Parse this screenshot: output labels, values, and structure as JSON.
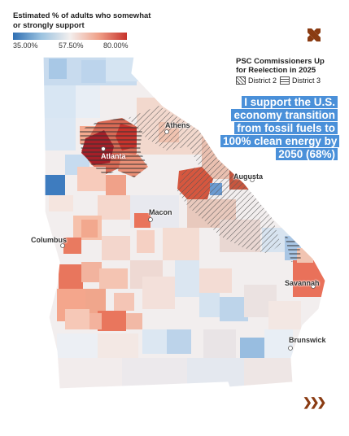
{
  "legend": {
    "title": "Estimated % of adults who somewhat or strongly support",
    "min_label": "35.00%",
    "mid_label": "57.50%",
    "max_label": "80.00%",
    "colors": [
      "#2f6fb3",
      "#9cc3e0",
      "#f3efee",
      "#f0a189",
      "#c7332c"
    ]
  },
  "psc": {
    "title": "PSC Commissioners Up for Reelection in 2025",
    "district2": "District 2",
    "district3": "District 3"
  },
  "headline": "I support the U.S. economy transition from fossil fuels to 100% clean energy by 2050 (68%)",
  "cities": {
    "athens": "Athens",
    "atlanta": "Atlanta",
    "augusta": "Augusta",
    "macon": "Macon",
    "columbus": "Columbus",
    "savannah": "Savannah",
    "brunswick": "Brunswick"
  },
  "icons": {
    "logo": "brand-x-icon",
    "next": "chevrons-right-icon"
  },
  "accent": "#4a90d9"
}
